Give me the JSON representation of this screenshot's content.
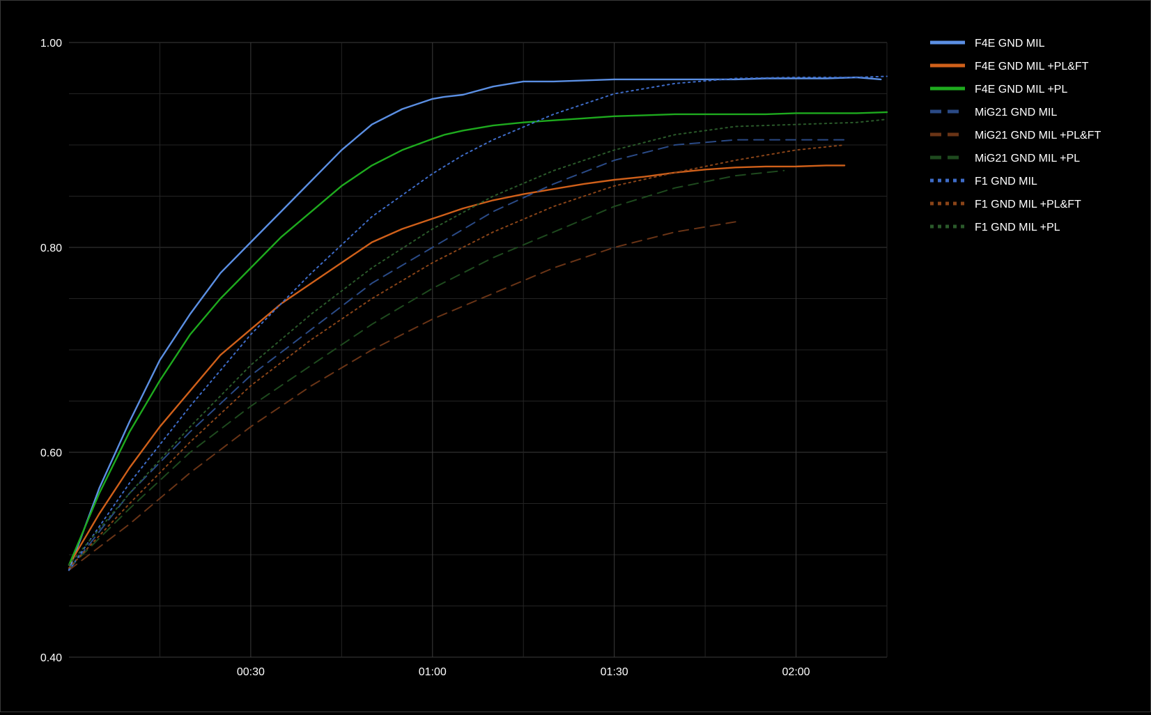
{
  "chart_data": {
    "type": "line",
    "title": "",
    "xlabel": "",
    "ylabel": "",
    "x_unit": "seconds",
    "xlim": [
      0,
      135
    ],
    "ylim": [
      0.4,
      1.0
    ],
    "x_ticks": [
      {
        "value": 30,
        "label": "00:30"
      },
      {
        "value": 60,
        "label": "01:00"
      },
      {
        "value": 90,
        "label": "01:30"
      },
      {
        "value": 120,
        "label": "02:00"
      }
    ],
    "y_ticks": [
      {
        "value": 1.0,
        "label": "1.00"
      },
      {
        "value": 0.8,
        "label": "0.80"
      },
      {
        "value": 0.6,
        "label": "0.60"
      },
      {
        "value": 0.4,
        "label": "0.40"
      }
    ],
    "grid": true,
    "legend_position": "right",
    "colors": {
      "background": "#000000",
      "grid": "#333333",
      "text": "#ffffff"
    },
    "series": [
      {
        "name": "F4E GND MIL",
        "color": "#5b8fe3",
        "dash": "solid",
        "x": [
          0,
          5,
          10,
          15,
          20,
          25,
          30,
          35,
          40,
          45,
          50,
          55,
          60,
          62,
          65,
          70,
          75,
          80,
          85,
          90,
          95,
          100,
          105,
          110,
          115,
          120,
          125,
          130,
          134
        ],
        "y": [
          0.485,
          0.565,
          0.63,
          0.69,
          0.735,
          0.775,
          0.805,
          0.835,
          0.865,
          0.895,
          0.92,
          0.935,
          0.945,
          0.947,
          0.949,
          0.957,
          0.962,
          0.962,
          0.963,
          0.964,
          0.964,
          0.964,
          0.964,
          0.964,
          0.965,
          0.965,
          0.965,
          0.966,
          0.964
        ]
      },
      {
        "name": "F4E GND MIL +PL&FT",
        "color": "#d0601a",
        "dash": "solid",
        "x": [
          0,
          5,
          10,
          15,
          20,
          25,
          30,
          35,
          40,
          45,
          50,
          55,
          60,
          62,
          65,
          70,
          75,
          80,
          85,
          90,
          95,
          100,
          105,
          110,
          115,
          120,
          125,
          128
        ],
        "y": [
          0.49,
          0.54,
          0.585,
          0.625,
          0.66,
          0.695,
          0.72,
          0.745,
          0.765,
          0.785,
          0.805,
          0.818,
          0.828,
          0.832,
          0.838,
          0.846,
          0.852,
          0.857,
          0.862,
          0.866,
          0.869,
          0.873,
          0.876,
          0.878,
          0.879,
          0.879,
          0.88,
          0.88
        ]
      },
      {
        "name": "F4E GND MIL +PL",
        "color": "#1eaa1e",
        "dash": "solid",
        "x": [
          0,
          5,
          10,
          15,
          20,
          25,
          30,
          35,
          40,
          45,
          50,
          55,
          60,
          62,
          65,
          70,
          75,
          80,
          85,
          90,
          95,
          100,
          105,
          110,
          115,
          120,
          125,
          130,
          135
        ],
        "y": [
          0.49,
          0.56,
          0.62,
          0.67,
          0.715,
          0.75,
          0.78,
          0.81,
          0.835,
          0.86,
          0.88,
          0.895,
          0.906,
          0.91,
          0.914,
          0.919,
          0.922,
          0.924,
          0.926,
          0.928,
          0.929,
          0.93,
          0.93,
          0.93,
          0.93,
          0.931,
          0.931,
          0.931,
          0.932
        ]
      },
      {
        "name": "MiG21 GND MIL",
        "color": "#2a4a86",
        "dash": "dashed",
        "x": [
          0,
          10,
          20,
          30,
          40,
          50,
          60,
          70,
          80,
          90,
          100,
          110,
          120,
          128
        ],
        "y": [
          0.485,
          0.56,
          0.62,
          0.675,
          0.72,
          0.765,
          0.8,
          0.835,
          0.862,
          0.885,
          0.9,
          0.905,
          0.905,
          0.905
        ]
      },
      {
        "name": "MiG21 GND MIL +PL&FT",
        "color": "#6a3416",
        "dash": "dashed",
        "x": [
          0,
          10,
          20,
          30,
          40,
          50,
          60,
          70,
          80,
          90,
          100,
          105,
          110
        ],
        "y": [
          0.485,
          0.53,
          0.58,
          0.625,
          0.665,
          0.7,
          0.73,
          0.755,
          0.78,
          0.8,
          0.815,
          0.82,
          0.825
        ]
      },
      {
        "name": "MiG21 GND MIL +PL",
        "color": "#1e4a1e",
        "dash": "dashed",
        "x": [
          0,
          10,
          20,
          30,
          40,
          50,
          60,
          70,
          80,
          90,
          100,
          110,
          118
        ],
        "y": [
          0.487,
          0.545,
          0.6,
          0.645,
          0.685,
          0.725,
          0.76,
          0.79,
          0.815,
          0.84,
          0.858,
          0.87,
          0.875
        ]
      },
      {
        "name": "F1 GND MIL",
        "color": "#3e6cc8",
        "dash": "dotted",
        "x": [
          0,
          10,
          20,
          30,
          40,
          50,
          60,
          65,
          70,
          80,
          90,
          100,
          110,
          120,
          130,
          135
        ],
        "y": [
          0.485,
          0.57,
          0.645,
          0.715,
          0.775,
          0.83,
          0.872,
          0.89,
          0.905,
          0.93,
          0.95,
          0.96,
          0.965,
          0.966,
          0.966,
          0.967
        ]
      },
      {
        "name": "F1 GND MIL +PL&FT",
        "color": "#8a4418",
        "dash": "dotted",
        "x": [
          0,
          10,
          20,
          30,
          40,
          50,
          60,
          70,
          80,
          90,
          100,
          110,
          120,
          128
        ],
        "y": [
          0.487,
          0.55,
          0.61,
          0.665,
          0.71,
          0.75,
          0.785,
          0.815,
          0.84,
          0.86,
          0.873,
          0.885,
          0.895,
          0.9
        ]
      },
      {
        "name": "F1 GND MIL +PL",
        "color": "#2a5a2a",
        "dash": "dotted",
        "x": [
          0,
          10,
          20,
          30,
          40,
          50,
          60,
          70,
          80,
          90,
          100,
          110,
          120,
          130,
          135
        ],
        "y": [
          0.49,
          0.56,
          0.625,
          0.685,
          0.735,
          0.78,
          0.818,
          0.85,
          0.875,
          0.895,
          0.91,
          0.918,
          0.92,
          0.922,
          0.925
        ]
      }
    ]
  }
}
